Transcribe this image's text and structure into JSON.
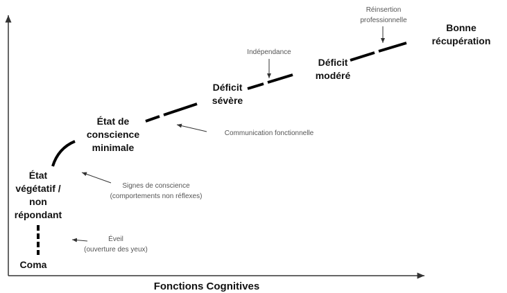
{
  "axis_label": "Fonctions Cognitives",
  "stages": [
    {
      "lines": [
        "Coma"
      ]
    },
    {
      "lines": [
        "État",
        "végétatif /",
        "non",
        "répondant"
      ]
    },
    {
      "lines": [
        "État de",
        "conscience",
        "minimale"
      ]
    },
    {
      "lines": [
        "Déficit",
        "sévère"
      ]
    },
    {
      "lines": [
        "Déficit",
        "modéré"
      ]
    },
    {
      "lines": [
        "Bonne",
        "récupération"
      ]
    }
  ],
  "transitions": [
    {
      "lines": [
        "Éveil",
        "(ouverture des yeux)"
      ]
    },
    {
      "lines": [
        "Signes de conscience",
        "(comportements non réflexes)"
      ]
    },
    {
      "lines": [
        "Communication fonctionnelle"
      ]
    },
    {
      "lines": [
        "Indépendance"
      ]
    },
    {
      "lines": [
        "Réinsertion",
        "professionnelle"
      ]
    }
  ]
}
